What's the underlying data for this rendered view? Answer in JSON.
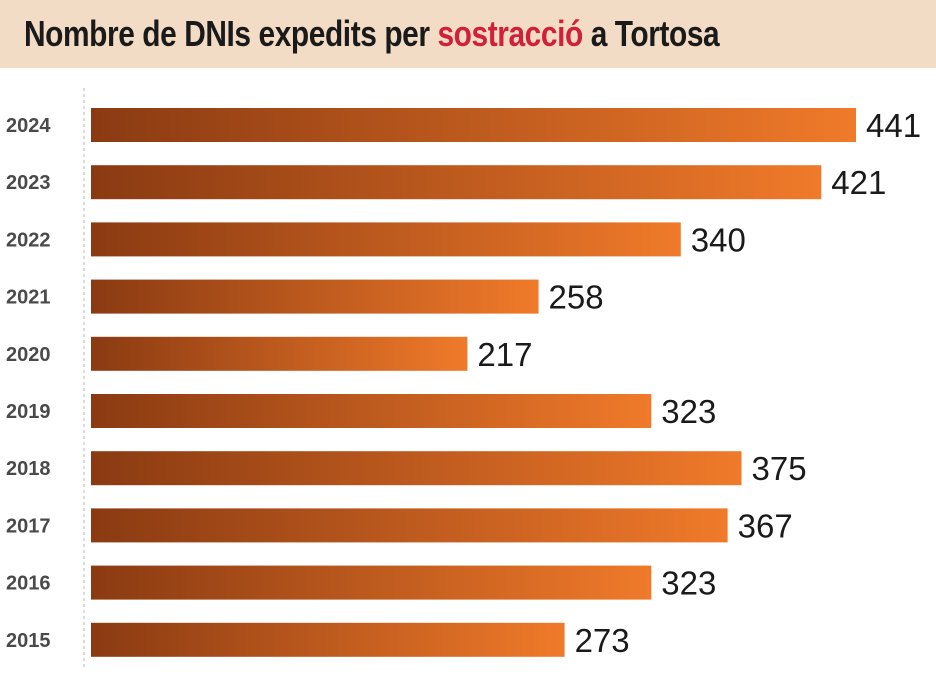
{
  "chart_data": {
    "type": "bar",
    "orientation": "horizontal",
    "title": {
      "prefix": "Nombre de DNIs expedits per",
      "highlight": "sostracció",
      "suffix": "a Tortosa"
    },
    "categories": [
      "2024",
      "2023",
      "2022",
      "2021",
      "2020",
      "2019",
      "2018",
      "2017",
      "2016",
      "2015"
    ],
    "values": [
      441,
      421,
      340,
      258,
      217,
      323,
      375,
      367,
      323,
      273
    ],
    "xlim": [
      0,
      441
    ],
    "xlabel": "",
    "ylabel": "",
    "grid": false,
    "colors": {
      "bar_dark": "#8a3a12",
      "bar_light": "#f07a2a",
      "highlight": "#d0203a",
      "header_bg": "#f2dcc6"
    }
  }
}
